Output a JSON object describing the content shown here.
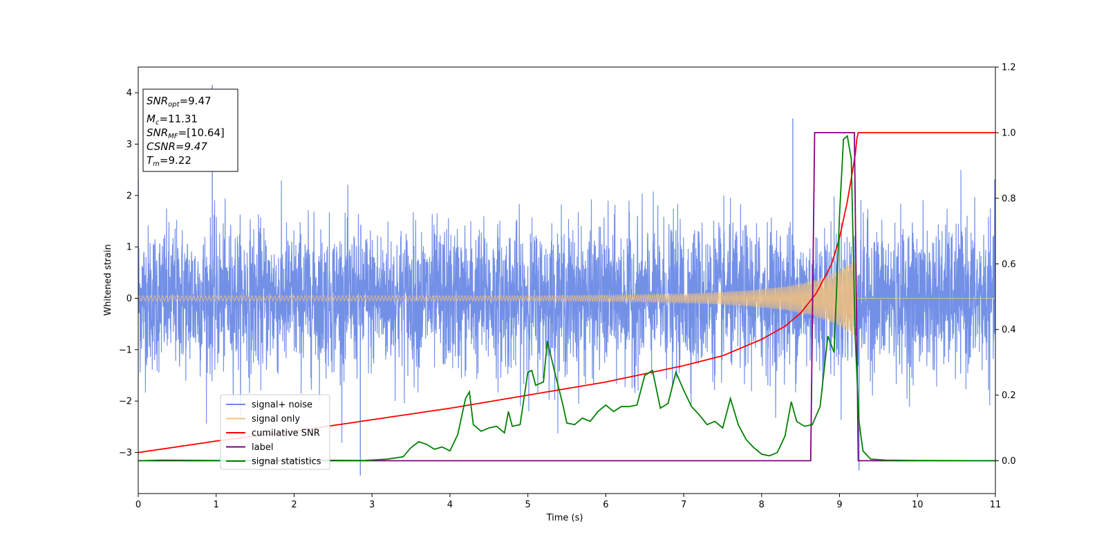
{
  "chart_data": {
    "type": "line",
    "xlabel": "Time (s)",
    "ylabel": "Whitened strain",
    "xlim": [
      0,
      11
    ],
    "ylim": [
      -3.8,
      4.5
    ],
    "y2lim": [
      -0.1,
      1.2
    ],
    "xticks": [
      "0",
      "1",
      "2",
      "3",
      "4",
      "5",
      "6",
      "7",
      "8",
      "9",
      "10",
      "11"
    ],
    "yticks": [
      "−3",
      "−2",
      "−1",
      "0",
      "1",
      "2",
      "3",
      "4"
    ],
    "y2ticks": [
      "0.0",
      "0.2",
      "0.4",
      "0.6",
      "0.8",
      "1.0",
      "1.2"
    ],
    "grid": false,
    "legend_position": "bottom-left",
    "series": [
      {
        "name": "signal+ noise",
        "color": "#6b8ae6",
        "axis": "left",
        "description": "dense noisy band, roughly ±1.5 with spikes to ±3.5",
        "x": [
          0,
          0.95,
          2.85,
          8.4,
          9.25,
          11
        ],
        "values": [
          2.3,
          4.15,
          -3.45,
          3.5,
          -3.35,
          2.3
        ]
      },
      {
        "name": "signal only",
        "color": "#f5c27a",
        "axis": "left",
        "description": "chirp with amplitude growing until merger",
        "x": [
          0,
          5.2,
          6.5,
          7.2,
          7.8,
          8.3,
          8.7,
          9.0,
          9.2,
          9.23,
          11
        ],
        "amplitude": [
          0.05,
          0.05,
          0.07,
          0.1,
          0.15,
          0.23,
          0.36,
          0.55,
          0.75,
          0,
          0
        ]
      },
      {
        "name": "cumilative SNR",
        "color": "#ff0000",
        "axis": "right",
        "x": [
          0,
          1,
          2,
          3,
          4,
          5,
          6,
          7,
          7.5,
          8,
          8.3,
          8.5,
          8.7,
          8.9,
          9.0,
          9.1,
          9.2,
          9.23,
          9.25,
          11
        ],
        "values": [
          0.025,
          0.06,
          0.09,
          0.125,
          0.16,
          0.2,
          0.24,
          0.29,
          0.32,
          0.37,
          0.41,
          0.45,
          0.51,
          0.6,
          0.68,
          0.79,
          0.93,
          1.0,
          1.0,
          1.0
        ]
      },
      {
        "name": "label",
        "color": "#800080",
        "axis": "right",
        "x": [
          0,
          8.63,
          8.68,
          9.19,
          9.24,
          11
        ],
        "values": [
          0,
          0,
          1,
          1,
          0,
          0
        ]
      },
      {
        "name": "signal statistics",
        "color": "#008000",
        "axis": "right",
        "x": [
          0,
          0.3,
          1.0,
          2.0,
          2.9,
          3.2,
          3.4,
          3.5,
          3.6,
          3.7,
          3.8,
          3.9,
          4.0,
          4.1,
          4.2,
          4.25,
          4.3,
          4.4,
          4.5,
          4.6,
          4.7,
          4.75,
          4.8,
          4.9,
          5.0,
          5.05,
          5.1,
          5.2,
          5.25,
          5.35,
          5.45,
          5.5,
          5.6,
          5.7,
          5.8,
          5.9,
          6.0,
          6.1,
          6.2,
          6.3,
          6.4,
          6.5,
          6.6,
          6.7,
          6.8,
          6.9,
          7.0,
          7.1,
          7.2,
          7.3,
          7.4,
          7.5,
          7.6,
          7.7,
          7.8,
          7.9,
          8.0,
          8.1,
          8.2,
          8.3,
          8.38,
          8.45,
          8.55,
          8.65,
          8.75,
          8.85,
          8.93,
          9.0,
          9.05,
          9.1,
          9.15,
          9.2,
          9.25,
          9.3,
          9.4,
          9.6,
          10,
          11
        ],
        "values": [
          0,
          0.002,
          0.001,
          0.002,
          0.001,
          0.005,
          0.012,
          0.04,
          0.058,
          0.05,
          0.035,
          0.042,
          0.03,
          0.08,
          0.19,
          0.21,
          0.11,
          0.09,
          0.1,
          0.105,
          0.085,
          0.15,
          0.105,
          0.11,
          0.27,
          0.275,
          0.23,
          0.24,
          0.365,
          0.265,
          0.17,
          0.115,
          0.11,
          0.13,
          0.12,
          0.15,
          0.17,
          0.15,
          0.165,
          0.165,
          0.17,
          0.26,
          0.275,
          0.16,
          0.175,
          0.27,
          0.215,
          0.165,
          0.14,
          0.11,
          0.12,
          0.1,
          0.19,
          0.11,
          0.065,
          0.04,
          0.02,
          0.015,
          0.025,
          0.075,
          0.18,
          0.12,
          0.105,
          0.11,
          0.165,
          0.38,
          0.33,
          0.75,
          0.98,
          0.99,
          0.92,
          0.38,
          0.12,
          0.03,
          0.005,
          0.002,
          0.001,
          0
        ]
      }
    ],
    "annotation_box": {
      "lines": [
        "SNR",
        "opt",
        "=9.47",
        "M",
        "c",
        "=11.31",
        "SNR",
        "MF",
        "=[10.64]",
        "CSNR=9.47",
        "T",
        "m",
        "=9.22"
      ]
    }
  }
}
